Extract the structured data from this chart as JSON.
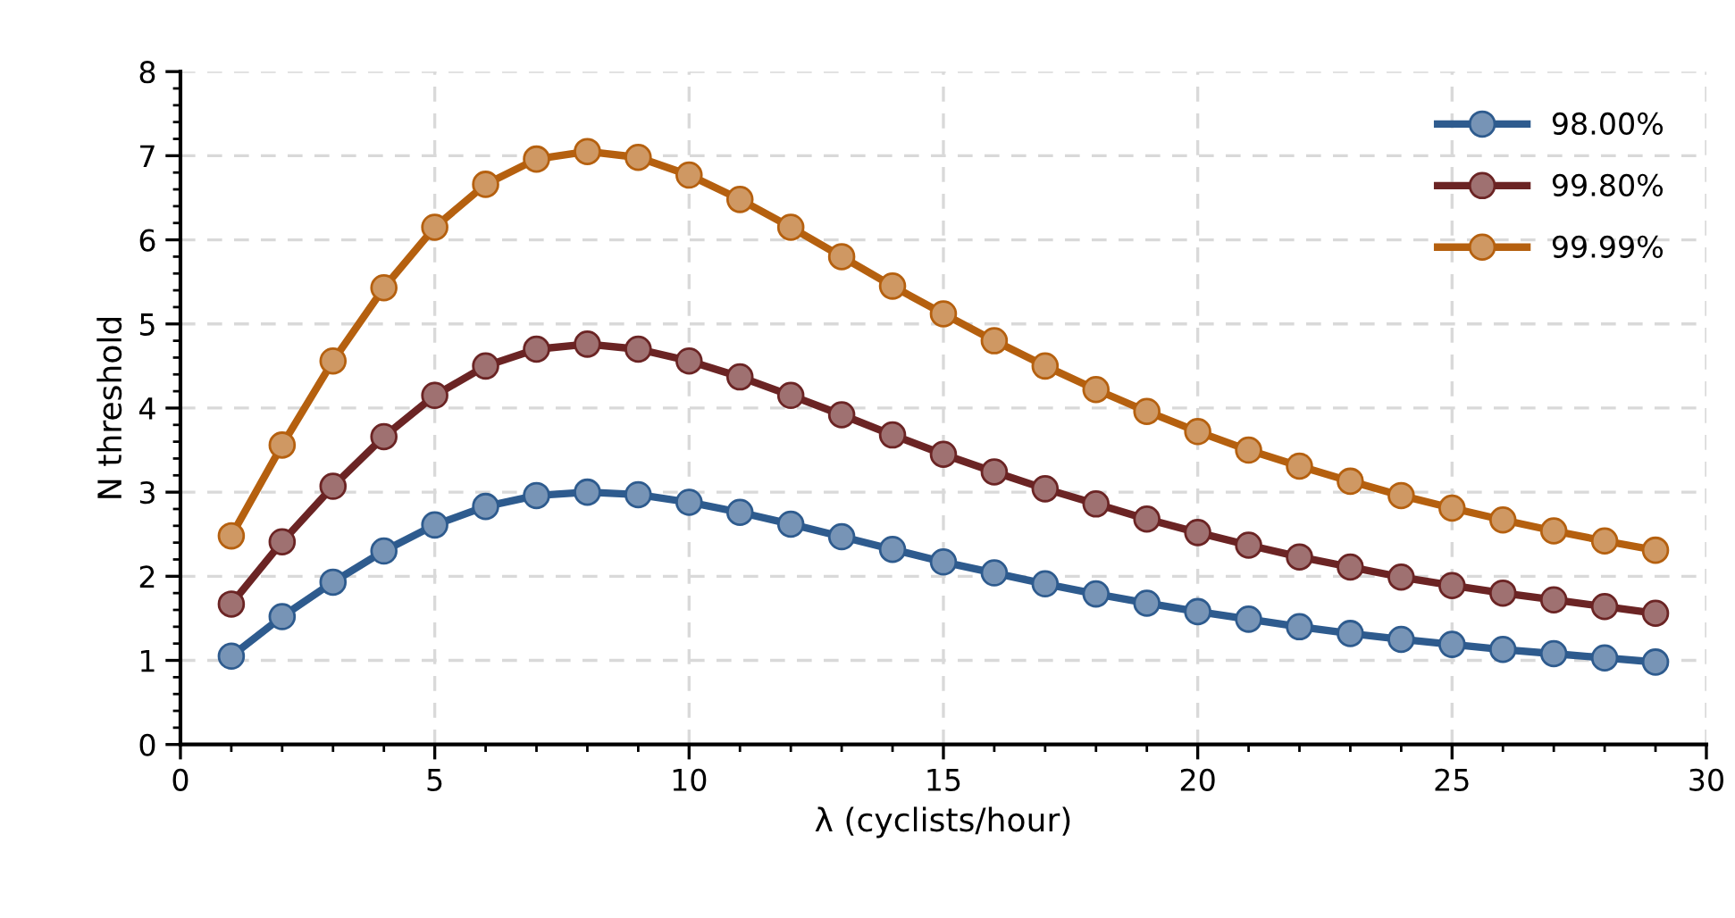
{
  "chart_data": {
    "type": "line",
    "xlabel": "λ (cyclists/hour)",
    "ylabel": "N threshold",
    "x": [
      1,
      2,
      3,
      4,
      5,
      6,
      7,
      8,
      9,
      10,
      11,
      12,
      13,
      14,
      15,
      16,
      17,
      18,
      19,
      20,
      21,
      22,
      23,
      24,
      25,
      26,
      27,
      28,
      29
    ],
    "series": [
      {
        "name": "98.00%",
        "color": "#2e5b8e",
        "values": [
          1.05,
          1.52,
          1.93,
          2.3,
          2.61,
          2.83,
          2.96,
          3.0,
          2.97,
          2.88,
          2.76,
          2.62,
          2.47,
          2.32,
          2.17,
          2.04,
          1.91,
          1.79,
          1.68,
          1.58,
          1.49,
          1.4,
          1.32,
          1.25,
          1.19,
          1.13,
          1.08,
          1.03,
          0.98
        ]
      },
      {
        "name": "99.80%",
        "color": "#6b2424",
        "values": [
          1.67,
          2.41,
          3.07,
          3.66,
          4.15,
          4.5,
          4.7,
          4.76,
          4.7,
          4.56,
          4.37,
          4.15,
          3.92,
          3.68,
          3.45,
          3.24,
          3.04,
          2.86,
          2.68,
          2.52,
          2.37,
          2.23,
          2.11,
          1.99,
          1.89,
          1.8,
          1.72,
          1.64,
          1.56
        ]
      },
      {
        "name": "99.99%",
        "color": "#b5600f",
        "values": [
          2.48,
          3.56,
          4.56,
          5.43,
          6.15,
          6.66,
          6.96,
          7.05,
          6.98,
          6.77,
          6.48,
          6.15,
          5.8,
          5.45,
          5.12,
          4.8,
          4.5,
          4.22,
          3.96,
          3.72,
          3.5,
          3.31,
          3.13,
          2.96,
          2.81,
          2.67,
          2.54,
          2.42,
          2.31
        ]
      }
    ],
    "xlim": [
      0,
      30
    ],
    "xticks": [
      0,
      5,
      10,
      15,
      20,
      25,
      30
    ],
    "ylim": [
      0,
      8
    ],
    "yticks": [
      0,
      1,
      2,
      3,
      4,
      5,
      6,
      7,
      8
    ],
    "grid": true,
    "legend": "top right",
    "marker": "circle",
    "line_style": "solid"
  }
}
